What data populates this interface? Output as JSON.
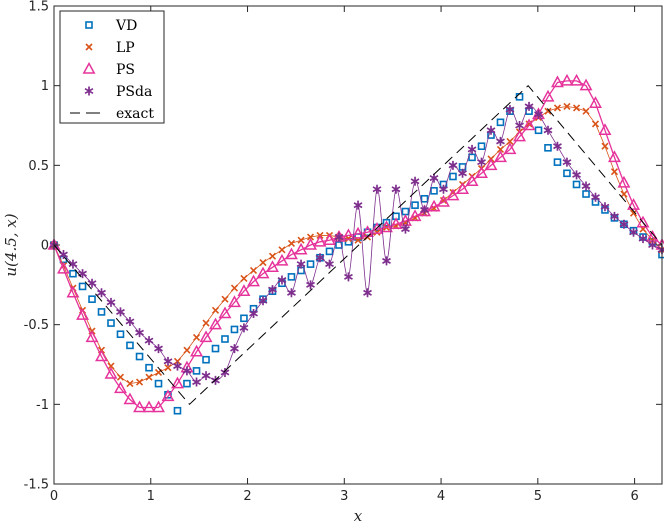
{
  "chart_data": {
    "type": "line",
    "title": "",
    "xlabel": "x",
    "ylabel": "u(4.5, x)",
    "xlim": [
      0,
      6.2832
    ],
    "ylim": [
      -1.5,
      1.5
    ],
    "x_ticks": [
      0,
      1,
      2,
      3,
      4,
      5,
      6
    ],
    "y_ticks": [
      -1.5,
      -1,
      -0.5,
      0,
      0.5,
      1,
      1.5
    ],
    "x_tick_labels": [
      "0",
      "1",
      "2",
      "3",
      "4",
      "5",
      "6"
    ],
    "y_tick_labels": [
      "-1.5",
      "-1",
      "-0.5",
      "0",
      "0.5",
      "1",
      "1.5"
    ],
    "grid": false,
    "legend_position": "top-left",
    "series": [
      {
        "name": "VD",
        "marker": "square",
        "color": "#0072BD",
        "line": false,
        "x": [
          0.0,
          0.098,
          0.196,
          0.295,
          0.393,
          0.491,
          0.589,
          0.687,
          0.785,
          0.884,
          0.982,
          1.08,
          1.178,
          1.276,
          1.374,
          1.473,
          1.571,
          1.669,
          1.767,
          1.865,
          1.963,
          2.062,
          2.16,
          2.258,
          2.356,
          2.454,
          2.553,
          2.651,
          2.749,
          2.847,
          2.945,
          3.043,
          3.142,
          3.24,
          3.338,
          3.436,
          3.534,
          3.632,
          3.731,
          3.829,
          3.927,
          4.025,
          4.123,
          4.222,
          4.32,
          4.418,
          4.516,
          4.614,
          4.712,
          4.811,
          4.909,
          5.007,
          5.105,
          5.203,
          5.301,
          5.4,
          5.498,
          5.596,
          5.694,
          5.792,
          5.89,
          5.989,
          6.087,
          6.185,
          6.283
        ],
        "y": [
          0.0,
          -0.09,
          -0.18,
          -0.26,
          -0.34,
          -0.42,
          -0.49,
          -0.56,
          -0.63,
          -0.7,
          -0.77,
          -0.87,
          -0.94,
          -1.04,
          -0.87,
          -0.79,
          -0.72,
          -0.65,
          -0.59,
          -0.53,
          -0.46,
          -0.4,
          -0.34,
          -0.29,
          -0.24,
          -0.2,
          -0.16,
          -0.12,
          -0.08,
          -0.04,
          0.0,
          0.02,
          0.05,
          0.08,
          0.11,
          0.14,
          0.18,
          0.21,
          0.25,
          0.29,
          0.34,
          0.38,
          0.43,
          0.49,
          0.55,
          0.62,
          0.69,
          0.77,
          0.84,
          0.93,
          0.84,
          0.72,
          0.61,
          0.52,
          0.45,
          0.38,
          0.32,
          0.27,
          0.22,
          0.17,
          0.13,
          0.09,
          0.05,
          0.02,
          -0.06
        ]
      },
      {
        "name": "LP",
        "marker": "x",
        "color": "#D95319",
        "line": true,
        "x": [
          0.0,
          0.098,
          0.196,
          0.295,
          0.393,
          0.491,
          0.589,
          0.687,
          0.785,
          0.884,
          0.982,
          1.08,
          1.178,
          1.276,
          1.374,
          1.473,
          1.571,
          1.669,
          1.767,
          1.865,
          1.963,
          2.062,
          2.16,
          2.258,
          2.356,
          2.454,
          2.553,
          2.651,
          2.749,
          2.847,
          2.945,
          3.043,
          3.142,
          3.24,
          3.338,
          3.436,
          3.534,
          3.632,
          3.731,
          3.829,
          3.927,
          4.025,
          4.123,
          4.222,
          4.32,
          4.418,
          4.516,
          4.614,
          4.712,
          4.811,
          4.909,
          5.007,
          5.105,
          5.203,
          5.301,
          5.4,
          5.498,
          5.596,
          5.694,
          5.792,
          5.89,
          5.989,
          6.087,
          6.185,
          6.283
        ],
        "y": [
          0.0,
          -0.13,
          -0.27,
          -0.41,
          -0.54,
          -0.66,
          -0.76,
          -0.83,
          -0.87,
          -0.86,
          -0.83,
          -0.8,
          -0.77,
          -0.73,
          -0.66,
          -0.58,
          -0.49,
          -0.41,
          -0.34,
          -0.27,
          -0.21,
          -0.16,
          -0.11,
          -0.07,
          -0.03,
          0.01,
          0.03,
          0.05,
          0.06,
          0.06,
          0.05,
          0.04,
          0.03,
          0.05,
          0.08,
          0.11,
          0.12,
          0.14,
          0.17,
          0.2,
          0.23,
          0.28,
          0.33,
          0.38,
          0.43,
          0.48,
          0.54,
          0.6,
          0.65,
          0.71,
          0.76,
          0.8,
          0.84,
          0.86,
          0.87,
          0.86,
          0.84,
          0.76,
          0.62,
          0.46,
          0.32,
          0.2,
          0.1,
          0.03,
          -0.03
        ]
      },
      {
        "name": "PS",
        "marker": "triangle",
        "color": "#E6339B",
        "line": true,
        "x": [
          0.0,
          0.098,
          0.196,
          0.295,
          0.393,
          0.491,
          0.589,
          0.687,
          0.785,
          0.884,
          0.982,
          1.08,
          1.178,
          1.276,
          1.374,
          1.473,
          1.571,
          1.669,
          1.767,
          1.865,
          1.963,
          2.062,
          2.16,
          2.258,
          2.356,
          2.454,
          2.553,
          2.651,
          2.749,
          2.847,
          2.945,
          3.043,
          3.142,
          3.24,
          3.338,
          3.436,
          3.534,
          3.632,
          3.731,
          3.829,
          3.927,
          4.025,
          4.123,
          4.222,
          4.32,
          4.418,
          4.516,
          4.614,
          4.712,
          4.811,
          4.909,
          5.007,
          5.105,
          5.203,
          5.301,
          5.4,
          5.498,
          5.596,
          5.694,
          5.792,
          5.89,
          5.989,
          6.087,
          6.185,
          6.283
        ],
        "y": [
          0.0,
          -0.15,
          -0.3,
          -0.44,
          -0.58,
          -0.7,
          -0.81,
          -0.9,
          -0.97,
          -1.02,
          -1.02,
          -1.02,
          -0.95,
          -0.87,
          -0.77,
          -0.67,
          -0.58,
          -0.5,
          -0.43,
          -0.36,
          -0.29,
          -0.23,
          -0.18,
          -0.14,
          -0.1,
          -0.06,
          -0.03,
          0.0,
          0.02,
          0.03,
          0.05,
          0.06,
          0.07,
          0.08,
          0.1,
          0.11,
          0.13,
          0.15,
          0.18,
          0.21,
          0.24,
          0.27,
          0.31,
          0.35,
          0.4,
          0.45,
          0.5,
          0.55,
          0.6,
          0.68,
          0.75,
          0.82,
          0.93,
          1.02,
          1.03,
          1.03,
          1.0,
          0.89,
          0.72,
          0.55,
          0.39,
          0.25,
          0.14,
          0.05,
          0.0
        ]
      },
      {
        "name": "PSda",
        "marker": "asterisk",
        "color": "#7E2F8E",
        "line": true,
        "x": [
          0.0,
          0.098,
          0.196,
          0.295,
          0.393,
          0.491,
          0.589,
          0.687,
          0.785,
          0.884,
          0.982,
          1.08,
          1.178,
          1.276,
          1.374,
          1.473,
          1.571,
          1.669,
          1.767,
          1.865,
          1.963,
          2.062,
          2.16,
          2.258,
          2.356,
          2.454,
          2.553,
          2.651,
          2.749,
          2.847,
          2.945,
          3.043,
          3.142,
          3.24,
          3.338,
          3.436,
          3.534,
          3.632,
          3.731,
          3.829,
          3.927,
          4.025,
          4.123,
          4.222,
          4.32,
          4.418,
          4.516,
          4.614,
          4.712,
          4.811,
          4.909,
          5.007,
          5.105,
          5.203,
          5.301,
          5.4,
          5.498,
          5.596,
          5.694,
          5.792,
          5.89,
          5.989,
          6.087,
          6.185,
          6.283
        ],
        "y": [
          0.0,
          -0.06,
          -0.12,
          -0.18,
          -0.24,
          -0.3,
          -0.36,
          -0.42,
          -0.48,
          -0.55,
          -0.6,
          -0.65,
          -0.73,
          -0.76,
          -0.79,
          -0.86,
          -0.82,
          -0.85,
          -0.8,
          -0.65,
          -0.52,
          -0.43,
          -0.35,
          -0.28,
          -0.22,
          -0.3,
          -0.12,
          -0.25,
          -0.08,
          -0.12,
          0.05,
          -0.2,
          0.25,
          -0.3,
          0.35,
          -0.1,
          0.35,
          0.1,
          0.4,
          0.22,
          0.42,
          0.35,
          0.5,
          0.45,
          0.6,
          0.52,
          0.72,
          0.65,
          0.85,
          0.75,
          0.87,
          0.82,
          0.72,
          0.62,
          0.52,
          0.44,
          0.37,
          0.3,
          0.24,
          0.18,
          0.13,
          0.08,
          0.04,
          0.0,
          -0.03
        ]
      },
      {
        "name": "exact",
        "marker": "none",
        "color": "#000000",
        "line": true,
        "dashed": true,
        "x": [
          0.0,
          1.4,
          4.9,
          6.2832
        ],
        "y": [
          0.0,
          -1.0,
          1.0,
          0.0
        ]
      }
    ]
  }
}
